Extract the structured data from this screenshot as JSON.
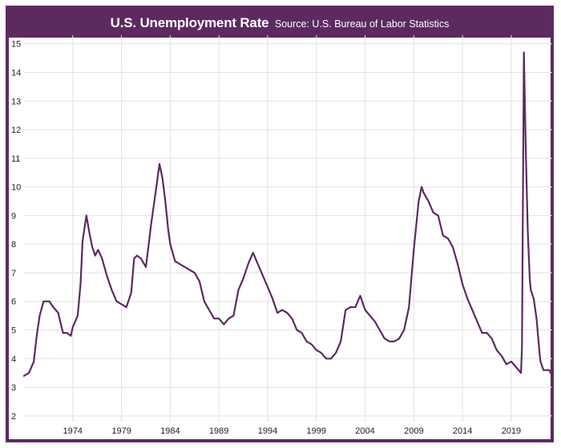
{
  "header": {
    "title": "U.S. Unemployment Rate",
    "source": "Source: U.S. Bureau of Labor Statistics"
  },
  "colors": {
    "frame": "#5c2a61",
    "line": "#5c2a61",
    "grid": "#e2e2e2"
  },
  "chart_data": {
    "type": "line",
    "title": "U.S. Unemployment Rate",
    "subtitle": "Source: U.S. Bureau of Labor Statistics",
    "xlabel": "",
    "ylabel": "",
    "xlim": [
      1969.0,
      2023.2
    ],
    "ylim": [
      1.8,
      15.3
    ],
    "grid": true,
    "x_ticks": [
      1974,
      1979,
      1984,
      1989,
      1994,
      1999,
      2004,
      2009,
      2014,
      2019
    ],
    "y_ticks": [
      2,
      3,
      4,
      5,
      6,
      7,
      8,
      9,
      10,
      11,
      12,
      13,
      14,
      15
    ],
    "series": [
      {
        "name": "",
        "x": [
          1969.0,
          1969.5,
          1970.0,
          1970.3,
          1970.6,
          1971.0,
          1971.3,
          1971.6,
          1972.0,
          1972.5,
          1973.0,
          1973.4,
          1973.8,
          1974.0,
          1974.5,
          1974.8,
          1975.0,
          1975.4,
          1975.7,
          1976.0,
          1976.3,
          1976.6,
          1977.0,
          1977.5,
          1978.0,
          1978.5,
          1979.0,
          1979.5,
          1980.0,
          1980.3,
          1980.6,
          1981.0,
          1981.5,
          1981.8,
          1982.0,
          1982.5,
          1982.9,
          1983.2,
          1983.5,
          1983.8,
          1984.0,
          1984.5,
          1985.0,
          1985.5,
          1986.0,
          1986.5,
          1987.0,
          1987.5,
          1988.0,
          1988.5,
          1989.0,
          1989.5,
          1990.0,
          1990.5,
          1991.0,
          1991.5,
          1992.0,
          1992.5,
          1993.0,
          1993.5,
          1994.0,
          1994.5,
          1995.0,
          1995.5,
          1996.0,
          1996.5,
          1997.0,
          1997.5,
          1998.0,
          1998.5,
          1999.0,
          1999.5,
          2000.0,
          2000.5,
          2001.0,
          2001.5,
          2002.0,
          2002.5,
          2003.0,
          2003.5,
          2004.0,
          2004.5,
          2005.0,
          2005.5,
          2006.0,
          2006.5,
          2007.0,
          2007.5,
          2008.0,
          2008.5,
          2009.0,
          2009.5,
          2009.8,
          2010.0,
          2010.5,
          2011.0,
          2011.5,
          2012.0,
          2012.5,
          2013.0,
          2013.5,
          2014.0,
          2014.5,
          2015.0,
          2015.5,
          2016.0,
          2016.5,
          2017.0,
          2017.5,
          2018.0,
          2018.5,
          2019.0,
          2019.5,
          2020.0,
          2020.1,
          2020.3,
          2020.5,
          2020.7,
          2020.9,
          2021.0,
          2021.3,
          2021.6,
          2021.9,
          2022.0,
          2022.3,
          2022.6,
          2022.9,
          2023.2
        ],
        "values": [
          3.4,
          3.5,
          3.9,
          4.8,
          5.5,
          6.0,
          6.0,
          6.0,
          5.8,
          5.6,
          4.9,
          4.9,
          4.8,
          5.1,
          5.5,
          6.6,
          8.1,
          9.0,
          8.4,
          7.9,
          7.6,
          7.8,
          7.5,
          6.9,
          6.4,
          6.0,
          5.9,
          5.8,
          6.3,
          7.5,
          7.6,
          7.5,
          7.2,
          8.0,
          8.6,
          9.8,
          10.8,
          10.3,
          9.5,
          8.5,
          8.0,
          7.4,
          7.3,
          7.2,
          7.1,
          7.0,
          6.7,
          6.0,
          5.7,
          5.4,
          5.4,
          5.2,
          5.4,
          5.5,
          6.4,
          6.8,
          7.3,
          7.7,
          7.3,
          6.9,
          6.5,
          6.1,
          5.6,
          5.7,
          5.6,
          5.4,
          5.0,
          4.9,
          4.6,
          4.5,
          4.3,
          4.2,
          4.0,
          4.0,
          4.2,
          4.6,
          5.7,
          5.8,
          5.8,
          6.2,
          5.7,
          5.5,
          5.3,
          5.0,
          4.7,
          4.6,
          4.6,
          4.7,
          5.0,
          5.8,
          7.8,
          9.5,
          10.0,
          9.8,
          9.5,
          9.1,
          9.0,
          8.3,
          8.2,
          7.9,
          7.3,
          6.6,
          6.1,
          5.7,
          5.3,
          4.9,
          4.9,
          4.7,
          4.3,
          4.1,
          3.8,
          3.9,
          3.7,
          3.5,
          4.4,
          14.7,
          11.1,
          8.4,
          6.8,
          6.4,
          6.1,
          5.4,
          4.2,
          3.9,
          3.6,
          3.6,
          3.6,
          3.4
        ]
      }
    ]
  }
}
